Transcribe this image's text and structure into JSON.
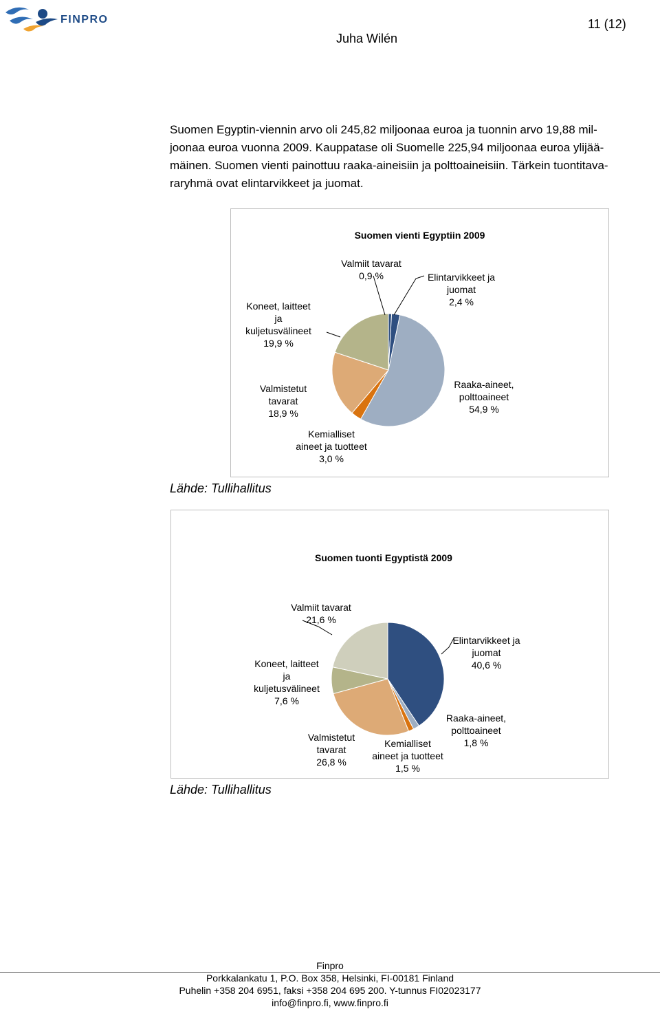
{
  "header": {
    "logo_text": "FINPRO",
    "page_number": "11 (12)",
    "author": "Juha Wilén"
  },
  "body": {
    "paragraph_lines": [
      "Suomen Egyptin-viennin arvo oli 245,82 miljoonaa euroa ja tuonnin arvo 19,88 mil-",
      "joonaa euroa vuonna 2009. Kauppatase oli Suomelle 225,94 miljoonaa euroa ylijää-",
      "mäinen. Suomen vienti painottuu raaka-aineisiin ja polttoaineisiin. Tärkein tuontitava-",
      "raryhmä ovat elintarvikkeet ja juomat."
    ]
  },
  "sources": [
    "Lähde: Tullihallitus",
    "Lähde: Tullihallitus"
  ],
  "chart_data": [
    {
      "type": "pie",
      "title": "Suomen vienti Egyptiin 2009",
      "slices": [
        {
          "label_lines": [
            "Valmiit tavarat",
            "0,9 %"
          ],
          "value": 0.9,
          "color": "#2f4f80"
        },
        {
          "label_lines": [
            "Elintarvikkeet ja",
            "juomat",
            "2,4 %"
          ],
          "value": 2.4,
          "color": "#2f4f80"
        },
        {
          "label_lines": [
            "Raaka-aineet,",
            "polttoaineet",
            "54,9 %"
          ],
          "value": 54.9,
          "color": "#9eaec2"
        },
        {
          "label_lines": [
            "Kemialliset",
            "aineet ja tuotteet",
            "3,0 %"
          ],
          "value": 3.0,
          "color": "#d9730f"
        },
        {
          "label_lines": [
            "Valmistetut",
            "tavarat",
            "18,9 %"
          ],
          "value": 18.9,
          "color": "#ddaa76"
        },
        {
          "label_lines": [
            "Koneet, laitteet",
            "ja",
            "kuljetusvälineet",
            "19,9 %"
          ],
          "value": 19.9,
          "color": "#b4b48a"
        }
      ]
    },
    {
      "type": "pie",
      "title": "Suomen tuonti Egyptistä 2009",
      "slices": [
        {
          "label_lines": [
            "Elintarvikkeet ja",
            "juomat",
            "40,6 %"
          ],
          "value": 40.6,
          "color": "#2f4f80"
        },
        {
          "label_lines": [
            "Raaka-aineet,",
            "polttoaineet",
            "1,8 %"
          ],
          "value": 1.8,
          "color": "#9eaec2"
        },
        {
          "label_lines": [
            "Kemialliset",
            "aineet ja tuotteet",
            "1,5 %"
          ],
          "value": 1.5,
          "color": "#d9730f"
        },
        {
          "label_lines": [
            "Valmistetut",
            "tavarat",
            "26,8 %"
          ],
          "value": 26.8,
          "color": "#ddaa76"
        },
        {
          "label_lines": [
            "Koneet, laitteet",
            "ja",
            "kuljetusvälineet",
            "7,6 %"
          ],
          "value": 7.6,
          "color": "#b4b48a"
        },
        {
          "label_lines": [
            "Valmiit tavarat",
            "21,6 %"
          ],
          "value": 21.6,
          "color": "#cfcfbc"
        }
      ]
    }
  ],
  "footer": {
    "lines": [
      "Finpro",
      "Porkkalankatu 1, P.O. Box 358, Helsinki, FI-00181 Finland",
      "Puhelin +358 204 6951, faksi +358 204 695 200. Y-tunnus FI02023177",
      "info@finpro.fi, www.finpro.fi"
    ]
  }
}
